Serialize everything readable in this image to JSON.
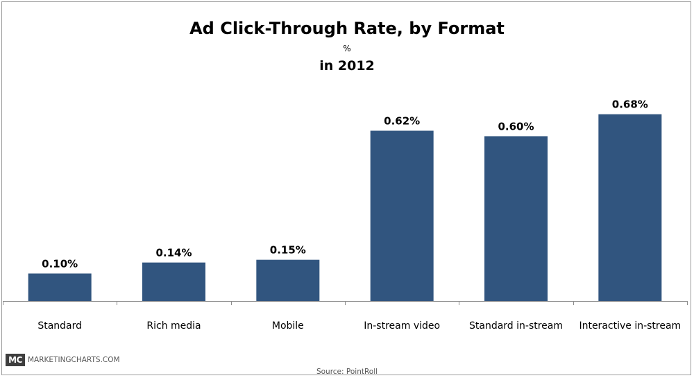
{
  "chart_data": {
    "type": "bar",
    "title": "Ad Click-Through Rate, by Format",
    "unit_label": "%",
    "subtitle": "in 2012",
    "categories": [
      "Standard",
      "Rich media",
      "Mobile",
      "In-stream video",
      "Standard in-stream",
      "Interactive in-stream"
    ],
    "values": [
      0.1,
      0.14,
      0.15,
      0.62,
      0.6,
      0.68
    ],
    "data_labels": [
      "0.10%",
      "0.14%",
      "0.15%",
      "0.62%",
      "0.60%",
      "0.68%"
    ],
    "ylim": [
      0,
      0.75
    ],
    "grid": false,
    "bar_color": "#31557f"
  },
  "footer": {
    "logo_text": "MC",
    "brand": "MARKETINGCHARTS.COM",
    "source": "Source:  PointRoll"
  }
}
